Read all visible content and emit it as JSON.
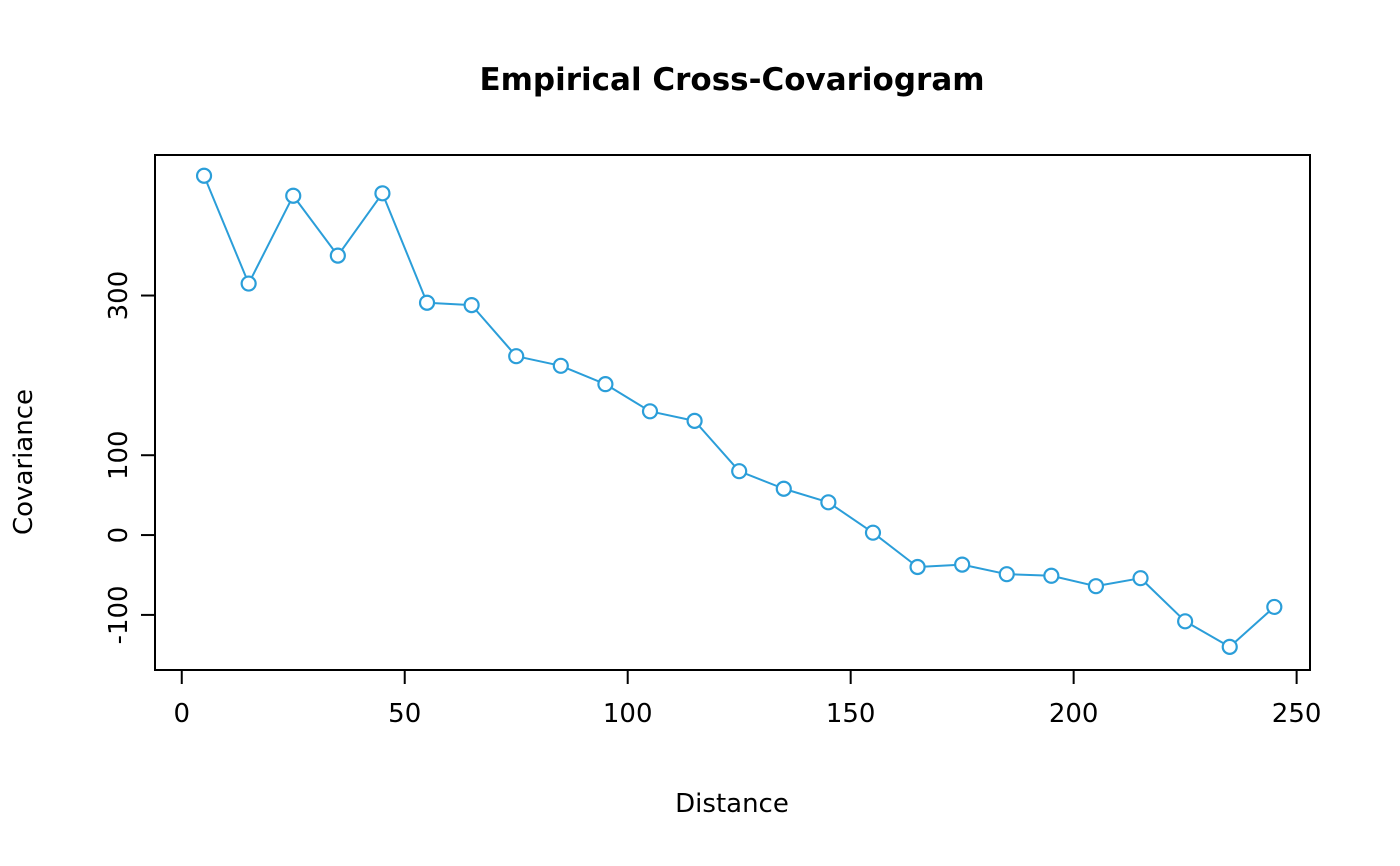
{
  "chart_data": {
    "type": "line",
    "title": "Empirical Cross-Covariogram",
    "xlabel": "Distance",
    "ylabel": "Covariance",
    "x": [
      5,
      15,
      25,
      35,
      45,
      55,
      65,
      75,
      85,
      95,
      105,
      115,
      125,
      135,
      145,
      155,
      165,
      175,
      185,
      195,
      205,
      215,
      225,
      235,
      245
    ],
    "y": [
      450,
      315,
      425,
      350,
      428,
      291,
      288,
      224,
      212,
      189,
      155,
      143,
      80,
      58,
      41,
      3,
      -40,
      -37,
      -49,
      -51,
      -64,
      -54,
      -108,
      -140,
      -90
    ],
    "xlim": [
      -6,
      253
    ],
    "ylim": [
      -169,
      476
    ],
    "xticks": [
      0,
      50,
      100,
      150,
      200,
      250
    ],
    "yticks": [
      -100,
      0,
      100,
      300
    ],
    "marker": "open-circle",
    "marker_radius": 7,
    "line_color": "#2b9ed9",
    "axis_color": "#000000",
    "background": "#ffffff",
    "grid": false,
    "legend": "none"
  }
}
